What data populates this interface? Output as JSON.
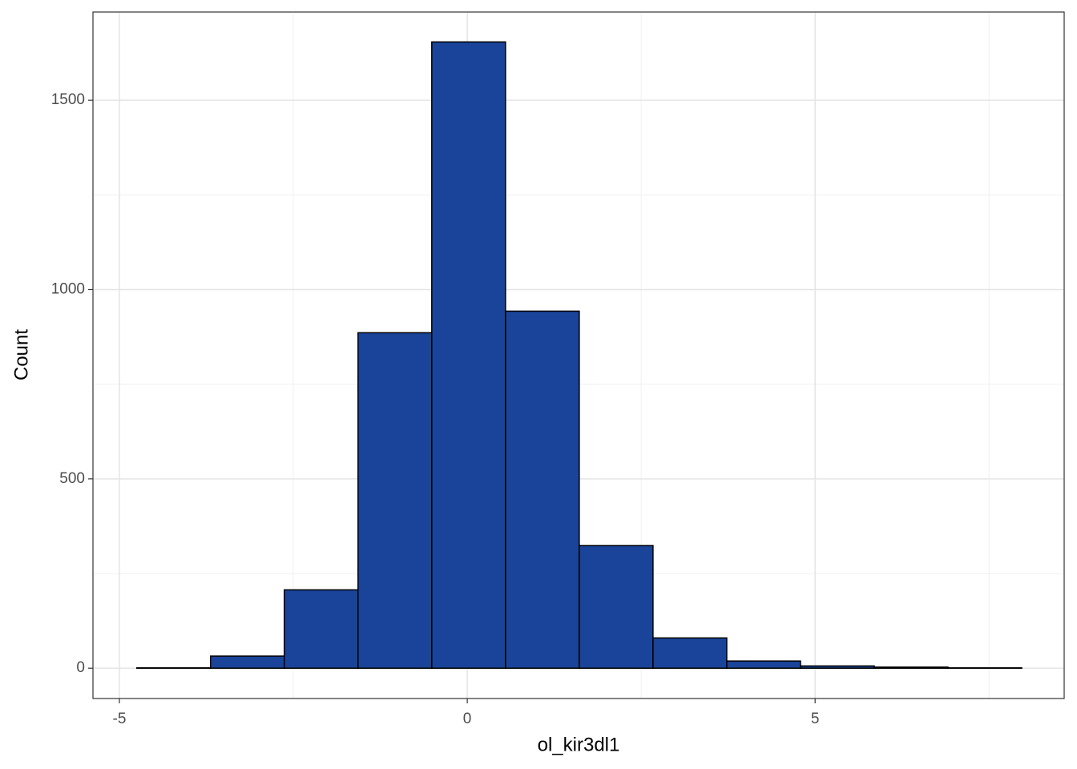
{
  "chart_data": {
    "type": "histogram",
    "x_label": "ol_kir3dl1",
    "y_label": "Count",
    "bins": [
      -4.75,
      -3.69,
      -2.63,
      -1.57,
      -0.51,
      0.55,
      1.61,
      2.67,
      3.73,
      4.79,
      5.85,
      6.91,
      7.97
    ],
    "values": [
      1,
      32,
      207,
      886,
      1654,
      943,
      324,
      80,
      19,
      6,
      3,
      1
    ],
    "color": "#1a4499",
    "xlim": [
      -5.38,
      8.58
    ],
    "ylim": [
      -80,
      1733
    ],
    "xticks": [
      -5,
      0,
      5
    ],
    "yticks": [
      0,
      500,
      1000,
      1500
    ],
    "minor_xticks": [
      -2.5,
      2.5,
      7.5
    ],
    "minor_yticks": [
      250,
      750,
      1250
    ],
    "grid": true
  }
}
